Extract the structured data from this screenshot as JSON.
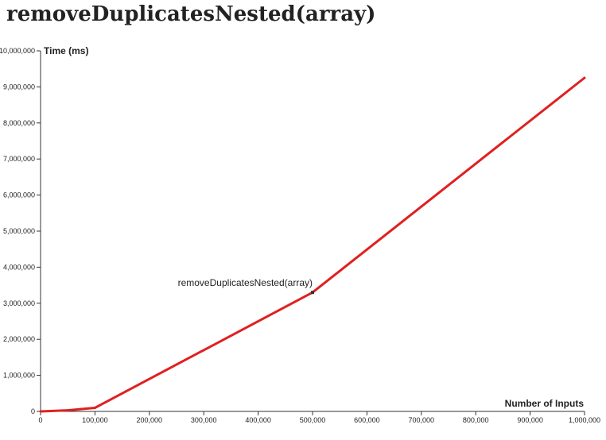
{
  "title": "removeDuplicatesNested(array)",
  "colors": {
    "series": "#e02020",
    "axis": "#333333",
    "marker": "#333333"
  },
  "chart_data": {
    "type": "line",
    "title": "removeDuplicatesNested(array)",
    "xlabel": "Number of Inputs",
    "ylabel": "Time (ms)",
    "xlim": [
      0,
      1000000
    ],
    "ylim": [
      0,
      10000000
    ],
    "grid": false,
    "legend": "none",
    "x_ticks": [
      "0",
      "100,000",
      "200,000",
      "300,000",
      "400,000",
      "500,000",
      "600,000",
      "700,000",
      "800,000",
      "900,000",
      "1,000,000"
    ],
    "y_ticks": [
      "0",
      "1,000,000",
      "2,000,000",
      "3,000,000",
      "4,000,000",
      "5,000,000",
      "6,000,000",
      "7,000,000",
      "8,000,000",
      "9,000,000",
      "10,000,000"
    ],
    "series": [
      {
        "name": "removeDuplicatesNested(array)",
        "x": [
          0,
          50000,
          100000,
          500000,
          1000000
        ],
        "y": [
          0,
          30000,
          100000,
          3300000,
          9250000
        ]
      }
    ],
    "annotations": [
      {
        "text": "removeDuplicatesNested(array)",
        "x": 500000,
        "y": 3300000
      }
    ]
  }
}
